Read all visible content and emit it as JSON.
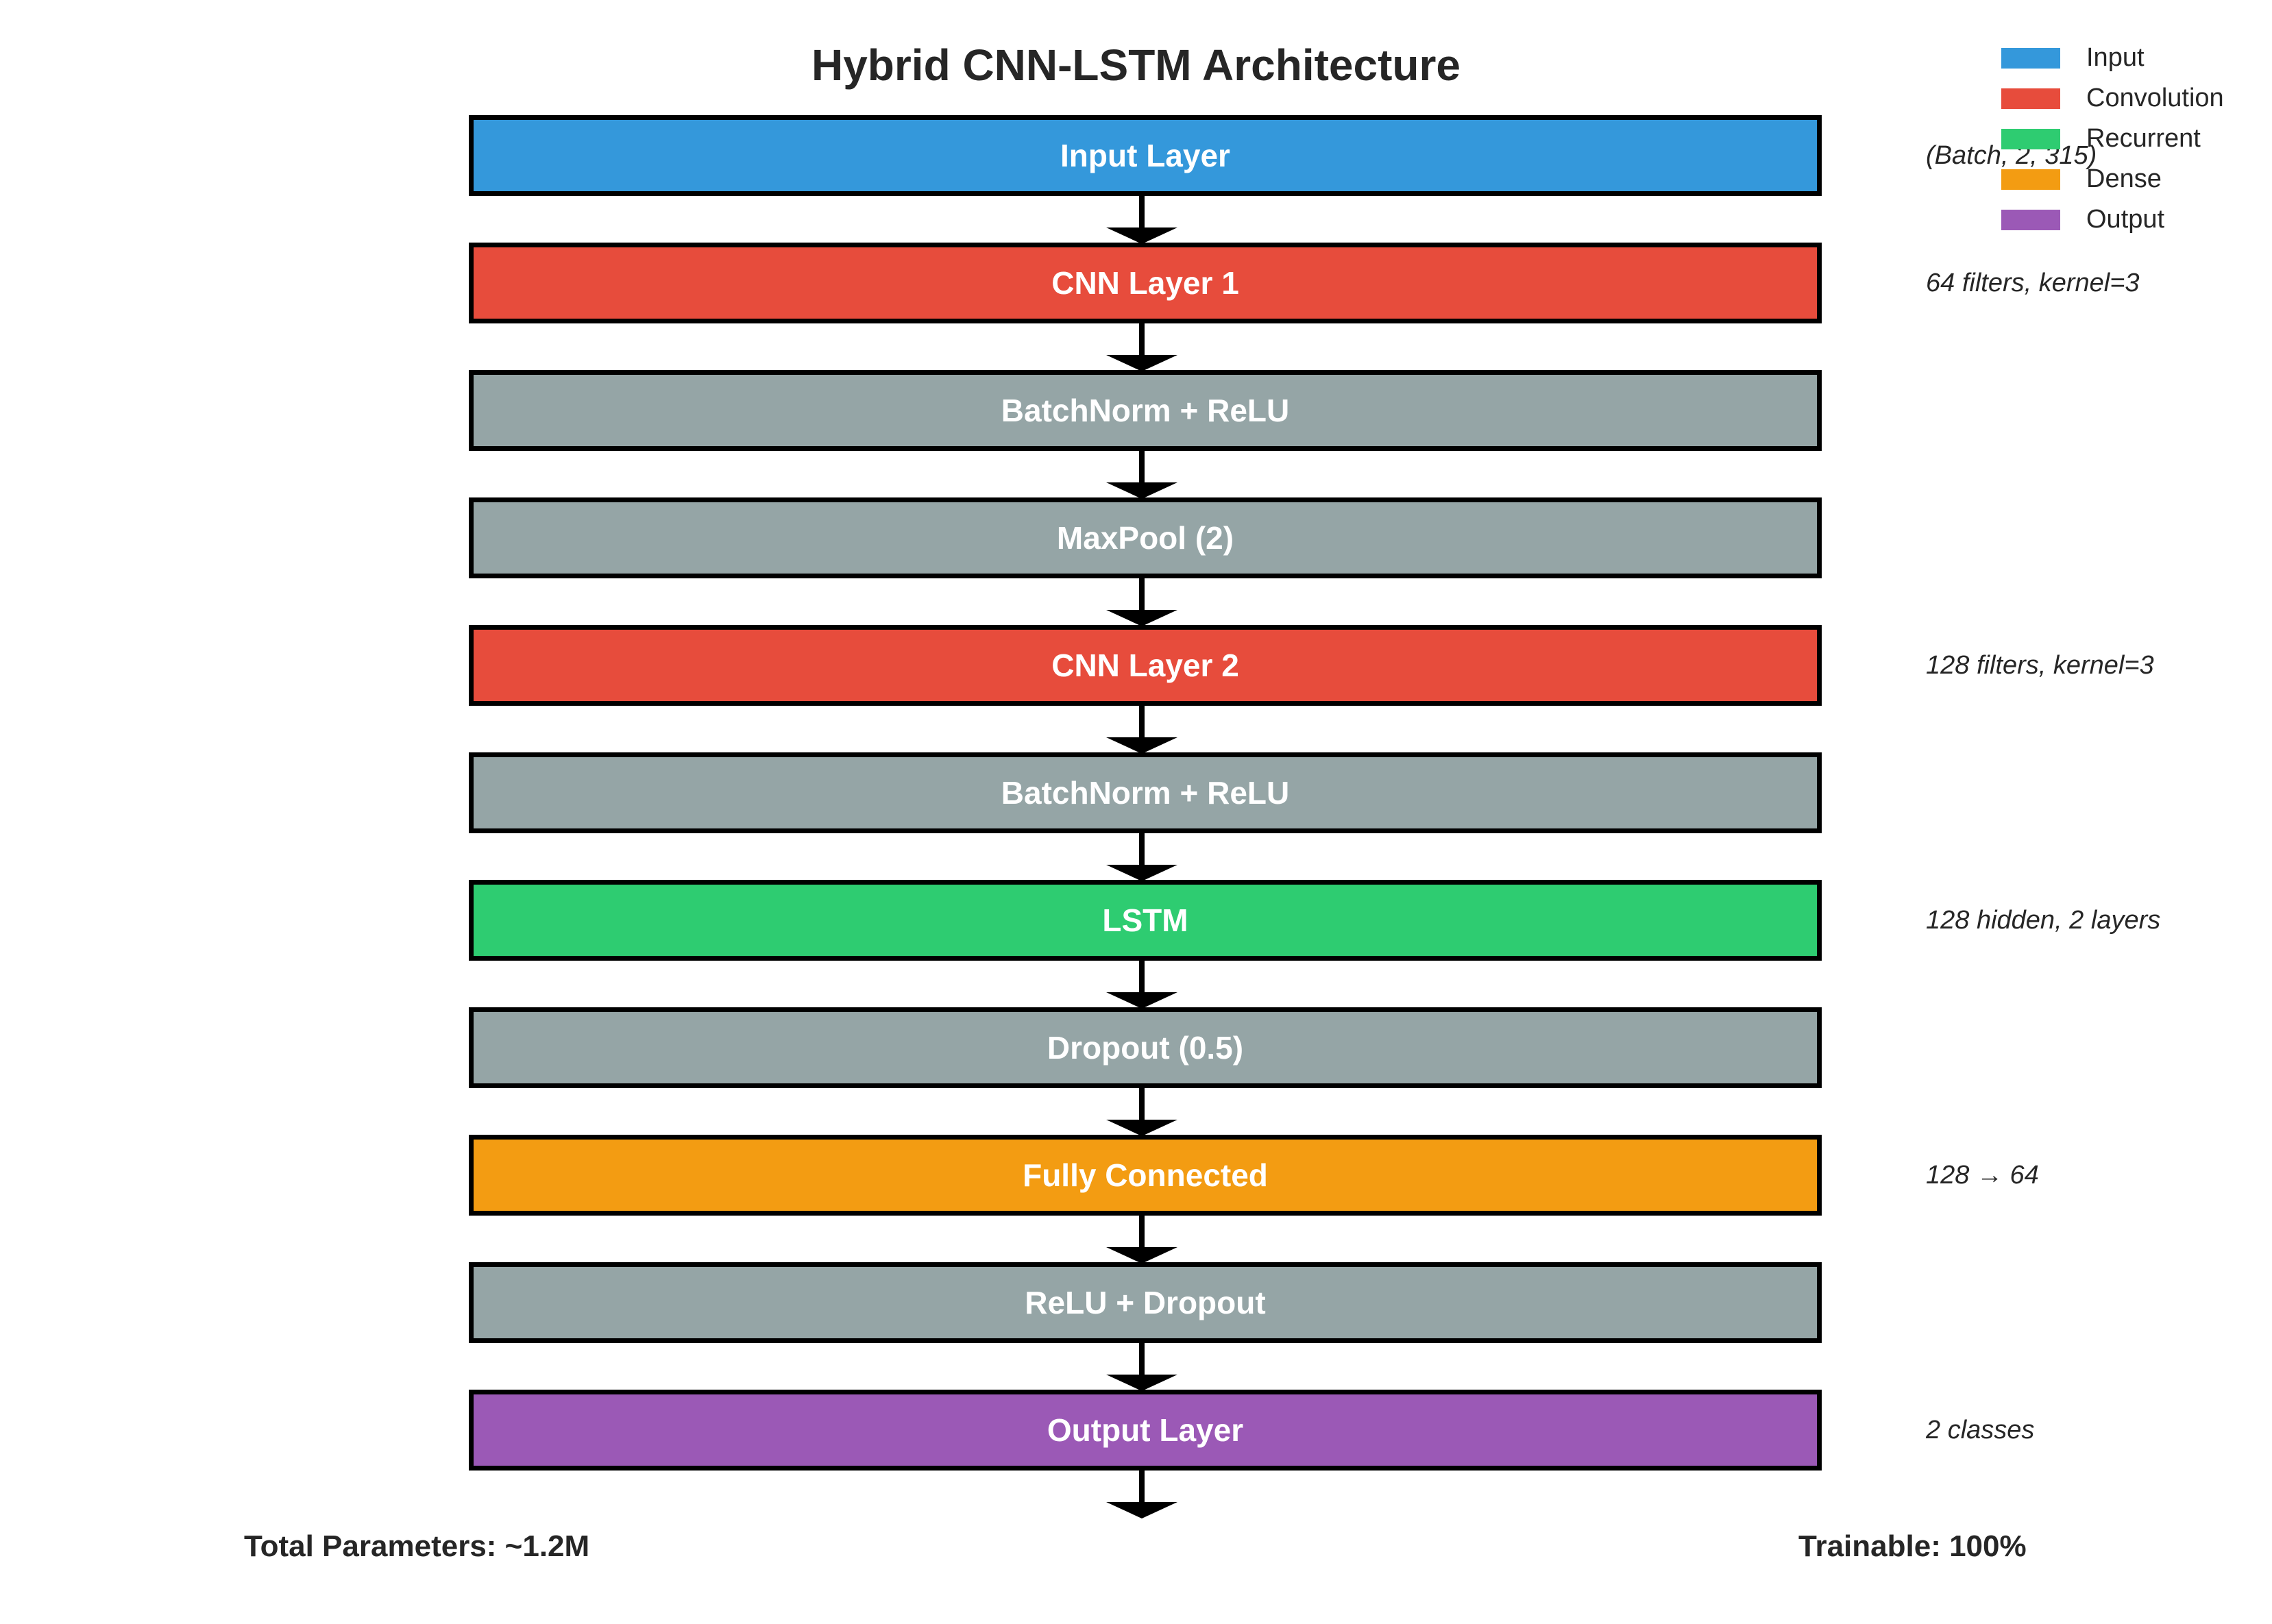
{
  "title": "Hybrid CNN-LSTM Architecture",
  "colors": {
    "input": "#3498db",
    "convolution": "#e74c3c",
    "neutral": "#95a5a6",
    "recurrent": "#2ecc71",
    "dense": "#f39c12",
    "output": "#9b59b6"
  },
  "layers": [
    {
      "label": "Input Layer",
      "kind": "input",
      "note": "(Batch, 2, 315)"
    },
    {
      "label": "CNN Layer 1",
      "kind": "convolution",
      "note": "64 filters, kernel=3"
    },
    {
      "label": "BatchNorm + ReLU",
      "kind": "neutral",
      "note": ""
    },
    {
      "label": "MaxPool (2)",
      "kind": "neutral",
      "note": ""
    },
    {
      "label": "CNN Layer 2",
      "kind": "convolution",
      "note": "128 filters, kernel=3"
    },
    {
      "label": "BatchNorm + ReLU",
      "kind": "neutral",
      "note": ""
    },
    {
      "label": "LSTM",
      "kind": "recurrent",
      "note": "128 hidden, 2 layers"
    },
    {
      "label": "Dropout (0.5)",
      "kind": "neutral",
      "note": ""
    },
    {
      "label": "Fully Connected",
      "kind": "dense",
      "note": "128 → 64"
    },
    {
      "label": "ReLU + Dropout",
      "kind": "neutral",
      "note": ""
    },
    {
      "label": "Output Layer",
      "kind": "output",
      "note": "2 classes"
    }
  ],
  "legend": [
    {
      "label": "Input",
      "kind": "input"
    },
    {
      "label": "Convolution",
      "kind": "convolution"
    },
    {
      "label": "Recurrent",
      "kind": "recurrent"
    },
    {
      "label": "Dense",
      "kind": "dense"
    },
    {
      "label": "Output",
      "kind": "output"
    }
  ],
  "footer": {
    "total_params": "Total Parameters: ~1.2M",
    "trainable": "Trainable: 100%"
  }
}
